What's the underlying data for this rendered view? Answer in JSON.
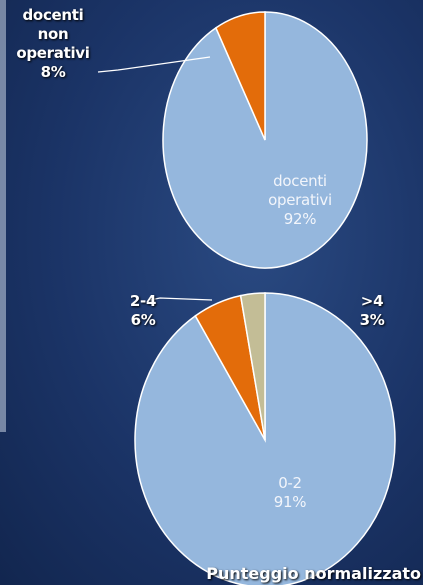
{
  "chart_data": [
    {
      "type": "pie",
      "categories": [
        "docenti operativi",
        "docenti non operativi"
      ],
      "values": [
        92,
        8
      ],
      "value_labels": [
        "92%",
        "8%"
      ],
      "colors": [
        "#95b7dd",
        "#e36c0a"
      ]
    },
    {
      "type": "pie",
      "title": "Punteggio normalizzato",
      "categories": [
        "0-2",
        "2-4",
        ">4"
      ],
      "values": [
        91,
        6,
        3
      ],
      "value_labels": [
        "91%",
        "6%",
        "3%"
      ],
      "colors": [
        "#95b7dd",
        "#e36c0a",
        "#c3bd96"
      ]
    }
  ]
}
